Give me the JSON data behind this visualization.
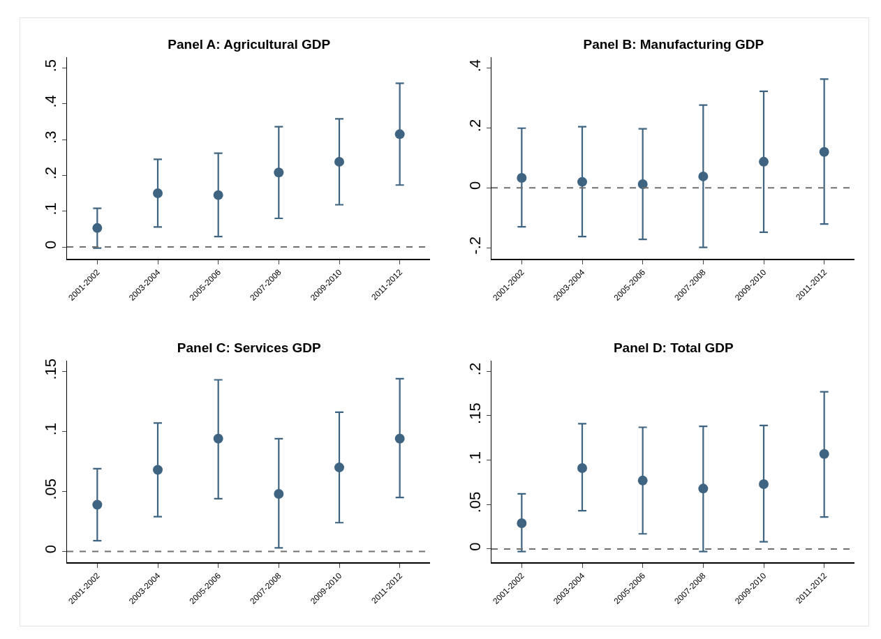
{
  "chart_data": [
    {
      "type": "scatter",
      "title": "Panel A: Agricultural GDP",
      "categories": [
        "2001-2002",
        "2003-2004",
        "2005-2006",
        "2007-2008",
        "2009-2010",
        "2011-2012"
      ],
      "marker": "circle",
      "grid": false,
      "legend": false,
      "color": "#3e6482",
      "values": [
        0.053,
        0.15,
        0.145,
        0.208,
        0.238,
        0.315
      ],
      "errors": [
        [
          -0.003,
          0.108
        ],
        [
          0.056,
          0.245
        ],
        [
          0.029,
          0.262
        ],
        [
          0.08,
          0.336
        ],
        [
          0.118,
          0.358
        ],
        [
          0.173,
          0.457
        ]
      ],
      "ylim": [
        -0.033,
        0.53
      ],
      "yticks": [
        {
          "value": 0,
          "label": "0"
        },
        {
          "value": 0.1,
          "label": ".1"
        },
        {
          "value": 0.2,
          "label": ".2"
        },
        {
          "value": 0.3,
          "label": ".3"
        },
        {
          "value": 0.4,
          "label": ".4"
        },
        {
          "value": 0.5,
          "label": ".5"
        }
      ],
      "ref_lines": [
        {
          "axis": "y",
          "value": 0,
          "color": "#707070",
          "line_style": "dashed"
        }
      ]
    },
    {
      "type": "scatter",
      "title": "Panel B: Manufacturing GDP",
      "categories": [
        "2001-2002",
        "2003-2004",
        "2005-2006",
        "2007-2008",
        "2009-2010",
        "2011-2012"
      ],
      "marker": "circle",
      "grid": false,
      "legend": false,
      "color": "#3e6482",
      "values": [
        0.033,
        0.02,
        0.012,
        0.038,
        0.087,
        0.12
      ],
      "errors": [
        [
          -0.13,
          0.199
        ],
        [
          -0.163,
          0.204
        ],
        [
          -0.172,
          0.197
        ],
        [
          -0.199,
          0.276
        ],
        [
          -0.148,
          0.322
        ],
        [
          -0.121,
          0.363
        ]
      ],
      "ylim": [
        -0.237,
        0.436
      ],
      "yticks": [
        {
          "value": -0.2,
          "label": "-.2"
        },
        {
          "value": 0,
          "label": "0"
        },
        {
          "value": 0.2,
          "label": ".2"
        },
        {
          "value": 0.4,
          "label": ".4"
        }
      ],
      "ref_lines": [
        {
          "axis": "y",
          "value": 0,
          "color": "#707070",
          "line_style": "dashed"
        }
      ]
    },
    {
      "type": "scatter",
      "title": "Panel C: Services GDP",
      "categories": [
        "2001-2002",
        "2003-2004",
        "2005-2006",
        "2007-2008",
        "2009-2010",
        "2011-2012"
      ],
      "marker": "circle",
      "grid": false,
      "legend": false,
      "color": "#3e6482",
      "values": [
        0.039,
        0.068,
        0.094,
        0.048,
        0.07,
        0.094
      ],
      "errors": [
        [
          0.009,
          0.069
        ],
        [
          0.029,
          0.107
        ],
        [
          0.044,
          0.143
        ],
        [
          0.003,
          0.094
        ],
        [
          0.024,
          0.116
        ],
        [
          0.045,
          0.144
        ]
      ],
      "ylim": [
        -0.009,
        0.159
      ],
      "yticks": [
        {
          "value": 0,
          "label": "0"
        },
        {
          "value": 0.05,
          "label": ".05"
        },
        {
          "value": 0.1,
          "label": ".1"
        },
        {
          "value": 0.15,
          "label": ".15"
        }
      ],
      "ref_lines": [
        {
          "axis": "y",
          "value": 0,
          "color": "#707070",
          "line_style": "dashed"
        }
      ]
    },
    {
      "type": "scatter",
      "title": "Panel D: Total GDP",
      "categories": [
        "2001-2002",
        "2003-2004",
        "2005-2006",
        "2007-2008",
        "2009-2010",
        "2011-2012"
      ],
      "marker": "circle",
      "grid": false,
      "legend": false,
      "color": "#3e6482",
      "values": [
        0.029,
        0.091,
        0.077,
        0.068,
        0.073,
        0.107
      ],
      "errors": [
        [
          -0.003,
          0.062
        ],
        [
          0.043,
          0.141
        ],
        [
          0.017,
          0.137
        ],
        [
          -0.003,
          0.138
        ],
        [
          0.008,
          0.139
        ],
        [
          0.036,
          0.177
        ]
      ],
      "ylim": [
        -0.015,
        0.212
      ],
      "yticks": [
        {
          "value": 0,
          "label": "0"
        },
        {
          "value": 0.05,
          "label": ".05"
        },
        {
          "value": 0.1,
          "label": ".1"
        },
        {
          "value": 0.15,
          "label": ".15"
        },
        {
          "value": 0.2,
          "label": ".2"
        }
      ],
      "ref_lines": [
        {
          "axis": "y",
          "value": 0,
          "color": "#707070",
          "line_style": "dashed"
        }
      ]
    }
  ]
}
